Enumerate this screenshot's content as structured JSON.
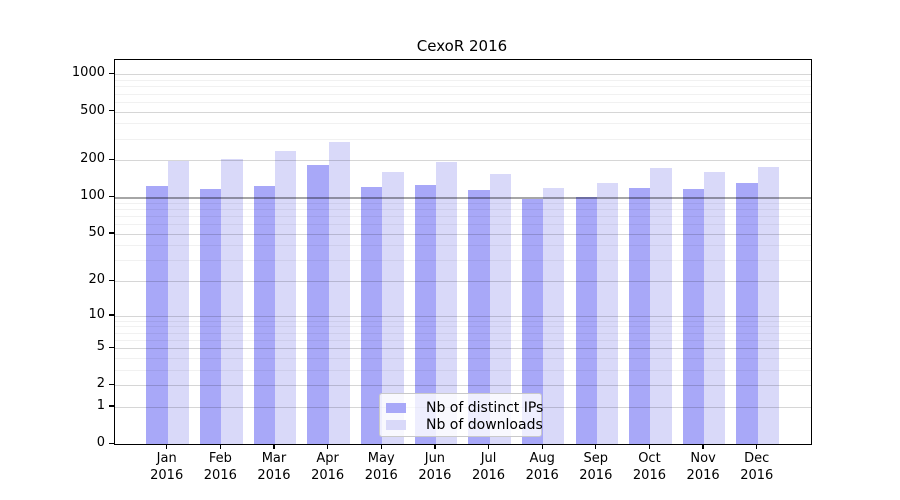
{
  "chart_data": {
    "type": "bar",
    "title": "CexoR 2016",
    "categories": [
      "Jan",
      "Feb",
      "Mar",
      "Apr",
      "May",
      "Jun",
      "Jul",
      "Aug",
      "Sep",
      "Oct",
      "Nov",
      "Dec"
    ],
    "x_sublabel": "2016",
    "series": [
      {
        "name": "Nb of distinct IPs",
        "color": "#a8a8f8",
        "values": [
          123,
          116,
          124,
          185,
          121,
          127,
          114,
          97,
          100,
          119,
          117,
          131
        ]
      },
      {
        "name": "Nb of downloads",
        "color": "#d9d9f9",
        "values": [
          197,
          207,
          237,
          280,
          161,
          194,
          155,
          120,
          130,
          172,
          160,
          176
        ]
      }
    ],
    "yscale": "log1p",
    "ylim": [
      0,
      1380
    ],
    "yticks": [
      0,
      1,
      2,
      5,
      10,
      20,
      50,
      100,
      200,
      500,
      1000
    ],
    "minor_gridlines": [
      3,
      4,
      6,
      7,
      8,
      9,
      30,
      40,
      60,
      70,
      80,
      90,
      300,
      400,
      600,
      700,
      800,
      900
    ],
    "grid": true,
    "legend_position": "lower center",
    "xlabel": "",
    "ylabel": ""
  },
  "colors": {
    "dark_bar": "#a8a8f8",
    "light_bar": "#d9d9f9",
    "axis": "#000000"
  }
}
